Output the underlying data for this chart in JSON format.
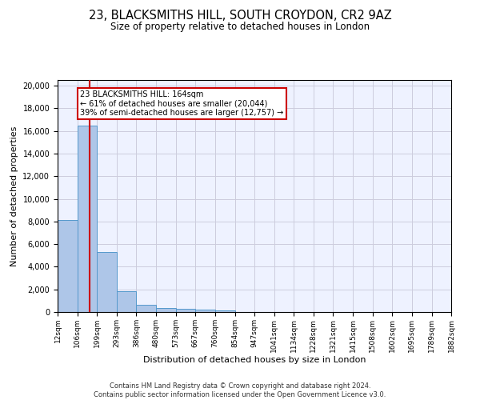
{
  "title1": "23, BLACKSMITHS HILL, SOUTH CROYDON, CR2 9AZ",
  "title2": "Size of property relative to detached houses in London",
  "xlabel": "Distribution of detached houses by size in London",
  "ylabel": "Number of detached properties",
  "bin_edges": [
    12,
    106,
    199,
    293,
    386,
    480,
    573,
    667,
    760,
    854,
    947,
    1041,
    1134,
    1228,
    1321,
    1415,
    1508,
    1602,
    1695,
    1789,
    1882
  ],
  "bar_heights": [
    8100,
    16500,
    5300,
    1850,
    650,
    330,
    250,
    200,
    150,
    0,
    0,
    0,
    0,
    0,
    0,
    0,
    0,
    0,
    0,
    0
  ],
  "bar_color": "#aec6e8",
  "bar_edgecolor": "#5599cc",
  "grid_color": "#ccccdd",
  "background_color": "#eef2ff",
  "property_size": 164,
  "vline_color": "#cc0000",
  "annotation_text": "23 BLACKSMITHS HILL: 164sqm\n← 61% of detached houses are smaller (20,044)\n39% of semi-detached houses are larger (12,757) →",
  "annotation_box_color": "#ffffff",
  "annotation_box_edgecolor": "#cc0000",
  "ylim": [
    0,
    20500
  ],
  "yticks": [
    0,
    2000,
    4000,
    6000,
    8000,
    10000,
    12000,
    14000,
    16000,
    18000,
    20000
  ],
  "tick_labels": [
    "12sqm",
    "106sqm",
    "199sqm",
    "293sqm",
    "386sqm",
    "480sqm",
    "573sqm",
    "667sqm",
    "760sqm",
    "854sqm",
    "947sqm",
    "1041sqm",
    "1134sqm",
    "1228sqm",
    "1321sqm",
    "1415sqm",
    "1508sqm",
    "1602sqm",
    "1695sqm",
    "1789sqm",
    "1882sqm"
  ],
  "footer_text": "Contains HM Land Registry data © Crown copyright and database right 2024.\nContains public sector information licensed under the Open Government Licence v3.0.",
  "title1_fontsize": 10.5,
  "title2_fontsize": 8.5,
  "xlabel_fontsize": 8,
  "ylabel_fontsize": 8,
  "tick_fontsize": 6.5,
  "footer_fontsize": 6
}
